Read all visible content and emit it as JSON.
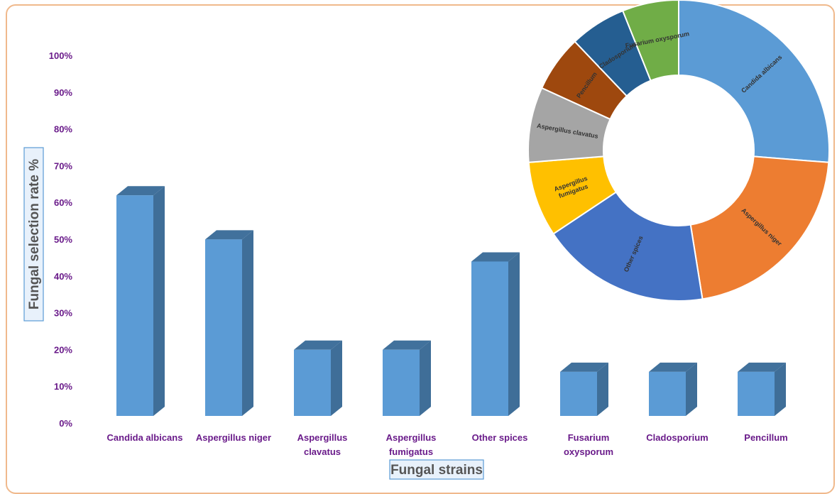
{
  "chart_data": [
    {
      "type": "bar",
      "title": "",
      "xlabel": "Fungal strains",
      "ylabel": "Fungal selection rate  %",
      "ylim": [
        0,
        100
      ],
      "yticks": [
        "0%",
        "10%",
        "20%",
        "30%",
        "40%",
        "50%",
        "60%",
        "70%",
        "80%",
        "90%",
        "100%"
      ],
      "categories": [
        [
          "Candida albicans"
        ],
        [
          "Aspergillus niger"
        ],
        [
          "Aspergillus",
          "clavatus"
        ],
        [
          "Aspergillus",
          "fumigatus"
        ],
        [
          "Other spices"
        ],
        [
          "Fusarium",
          "oxysporum"
        ],
        [
          "Cladosporium"
        ],
        [
          "Pencillum"
        ]
      ],
      "values": [
        60,
        48,
        18,
        18,
        42,
        12,
        12,
        12
      ],
      "colors": {
        "bar_front": "#5b9bd5",
        "bar_side": "#3f6e98",
        "bar_top": "#41719c",
        "tick_text": "#6a1b8a",
        "axis_title": "#555555"
      }
    },
    {
      "type": "pie",
      "style": "donut",
      "slices": [
        {
          "label": "Candida albicans",
          "value": 26,
          "color": "#5b9bd5"
        },
        {
          "label": "Aspergillus niger",
          "value": 21,
          "color": "#ed7d31"
        },
        {
          "label": "Other spices",
          "value": 18,
          "color": "#4472c4"
        },
        {
          "label": [
            "Aspergillus",
            "fumigatus"
          ],
          "value": 8,
          "color": "#ffc000"
        },
        {
          "label": "Aspergillus clavatus",
          "value": 8,
          "color": "#a5a5a5"
        },
        {
          "label": "Pencillum",
          "value": 6,
          "color": "#9e480e"
        },
        {
          "label": "Cladosporium",
          "value": 6,
          "color": "#255e91"
        },
        {
          "label": "Fusarium oxysporum",
          "value": 6,
          "color": "#70ad47"
        }
      ]
    }
  ]
}
